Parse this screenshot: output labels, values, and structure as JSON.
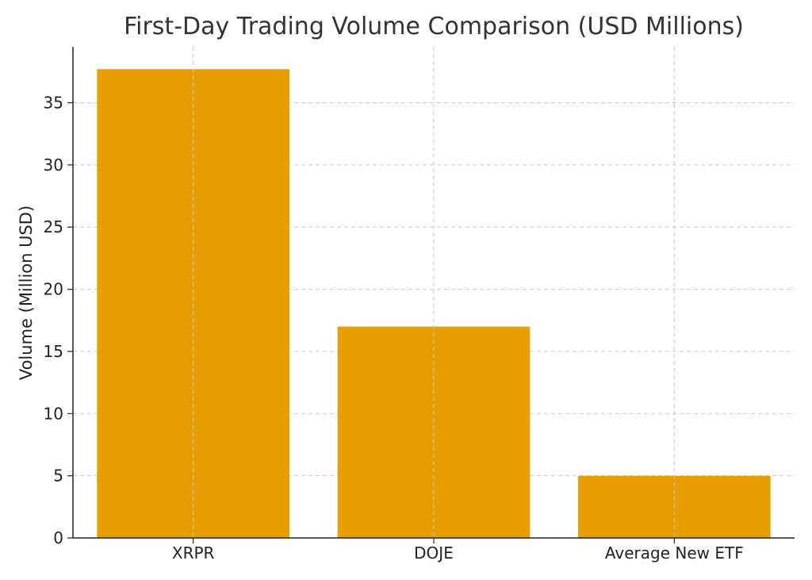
{
  "chart_data": {
    "type": "bar",
    "title": "First-Day Trading Volume Comparison (USD Millions)",
    "xlabel": "",
    "ylabel": "Volume (Million USD)",
    "categories": [
      "XRPR",
      "DOJE",
      "Average New ETF"
    ],
    "values": [
      37.7,
      17.0,
      5.0
    ],
    "ylim": [
      0,
      39.5
    ],
    "yticks": [
      0,
      5,
      10,
      15,
      20,
      25,
      30,
      35
    ],
    "grid": true,
    "bar_color": "#E69F00"
  }
}
